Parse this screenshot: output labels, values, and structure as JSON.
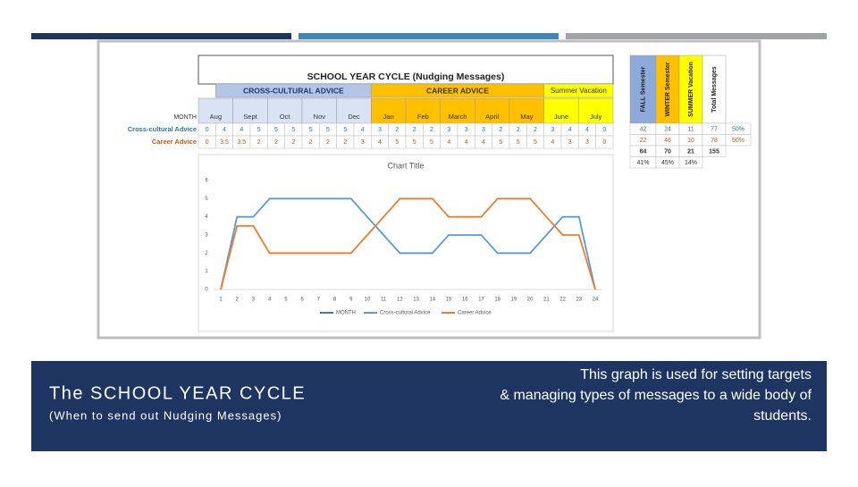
{
  "slide": {
    "title": "The SCHOOL YEAR CYCLE",
    "subtitle": "(When to send out Nudging Messages)",
    "description_lines": [
      "This graph is used for setting targets",
      "& managing types of messages to a wide body of",
      "students."
    ]
  },
  "table": {
    "title": "SCHOOL YEAR CYCLE (Nudging Messages)",
    "groups": [
      {
        "label": "CROSS-CULTURAL ADVICE",
        "color": "#b4c6e7"
      },
      {
        "label": "CAREER ADVICE",
        "color": "#ffc000"
      },
      {
        "label": "Summer Vacation",
        "color": "#ffff00"
      }
    ],
    "month_header": "MONTH",
    "months": [
      "Aug",
      "Sept",
      "Oct",
      "Nov",
      "Dec",
      "Jan",
      "Feb",
      "March",
      "April",
      "May",
      "June",
      "July"
    ],
    "row_labels": [
      "Cross-cultural Advice",
      "Career Advice"
    ],
    "summary_headers": [
      "FALL Semester",
      "WINTER Semester",
      "SUMMER Vacation",
      "Total Messages"
    ],
    "summary_rows": [
      [
        42,
        24,
        11,
        77,
        "50%"
      ],
      [
        22,
        46,
        10,
        78,
        "50%"
      ],
      [
        64,
        70,
        21,
        155
      ],
      [
        "41%",
        "45%",
        "14%"
      ]
    ]
  },
  "chart_data": {
    "type": "line",
    "title": "Chart Title",
    "categories": [
      "1",
      "2",
      "3",
      "4",
      "5",
      "6",
      "7",
      "8",
      "9",
      "10",
      "11",
      "12",
      "13",
      "14",
      "15",
      "16",
      "17",
      "18",
      "19",
      "20",
      "21",
      "22",
      "23",
      "24"
    ],
    "extra_legend": {
      "name": "MONTH",
      "color": "#4472c4"
    },
    "series": [
      {
        "name": "Cross-cultural Advice",
        "color": "#5b9bd5",
        "values": [
          0,
          4,
          4,
          5,
          5,
          5,
          5,
          5,
          5,
          4,
          3,
          2,
          2,
          2,
          3,
          3,
          3,
          2,
          2,
          2,
          3,
          4,
          4,
          0
        ]
      },
      {
        "name": "Career Advice",
        "color": "#ed7d31",
        "values": [
          0,
          3.5,
          3.5,
          2,
          2,
          2,
          2,
          2,
          2,
          3,
          4,
          5,
          5,
          5,
          4,
          4,
          4,
          5,
          5,
          5,
          4,
          3,
          3,
          0
        ]
      }
    ],
    "ylim": [
      0,
      6
    ],
    "yticks": [
      0,
      1,
      2,
      3,
      4,
      5,
      6
    ]
  }
}
